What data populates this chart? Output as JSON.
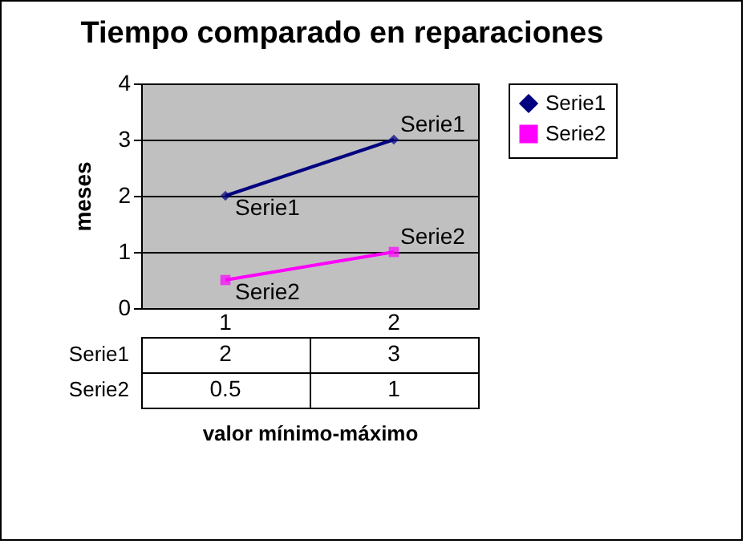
{
  "chart_data": {
    "type": "line",
    "title": "Tiempo comparado en reparaciones",
    "xlabel": "valor mínimo-máximo",
    "ylabel": "meses",
    "categories": [
      "1",
      "2"
    ],
    "series": [
      {
        "name": "Serie1",
        "color": "#000080",
        "marker": "diamond",
        "values": [
          2,
          3
        ]
      },
      {
        "name": "Serie2",
        "color": "#ff00ff",
        "marker": "square",
        "values": [
          0.5,
          1
        ]
      }
    ],
    "ylim": [
      0,
      4
    ],
    "yticks": [
      0,
      1,
      2,
      3,
      4
    ],
    "grid": "y",
    "legend": "right",
    "data_labels": true
  }
}
